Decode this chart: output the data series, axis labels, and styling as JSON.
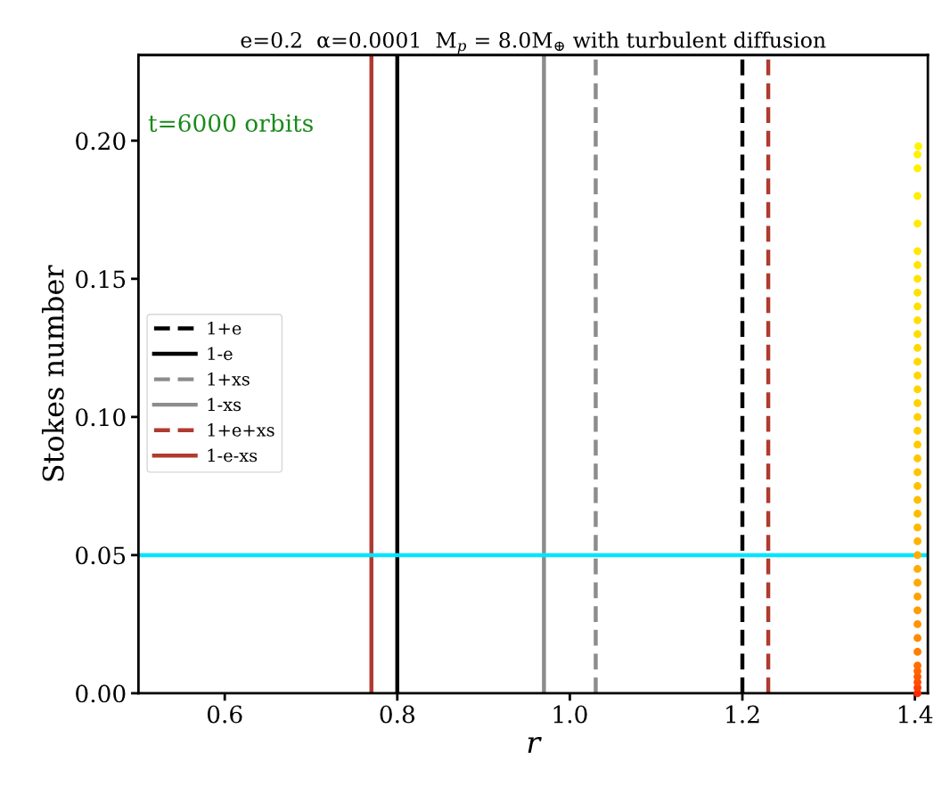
{
  "chart_data": {
    "type": "scatter",
    "title": "e=0.2  α=0.0001  M$_{p}$ = 8.0M$_{⊕}$ with turbulent diffusion",
    "xlabel": "r",
    "ylabel": "Stokes number",
    "annotations": [
      "t=6000 orbits"
    ],
    "xlim": [
      0.5,
      1.415
    ],
    "xticks": [
      0.6,
      0.8,
      {
        "value": 1.0,
        "label": "1.0"
      },
      1.2,
      1.4
    ],
    "ylim": [
      0,
      0.231
    ],
    "yticks": [
      {
        "value": 0,
        "label": "0.00"
      },
      0.05,
      {
        "value": 0.1,
        "label": "0.10"
      },
      0.15,
      {
        "value": 0.2,
        "label": "0.20"
      }
    ],
    "series": [
      {
        "name": "1+e",
        "type": "line",
        "color": "#000000",
        "line_style": "dashed",
        "x": [
          1.2,
          1.2
        ],
        "values": [
          0,
          0.231
        ]
      },
      {
        "name": "1-e",
        "type": "line",
        "color": "#000000",
        "line_style": "solid",
        "x": [
          0.8,
          0.8
        ],
        "values": [
          0,
          0.231
        ]
      },
      {
        "name": "1+xs",
        "type": "line",
        "color": "#8c8c8c",
        "line_style": "dashed",
        "x": [
          1.03,
          1.03
        ],
        "values": [
          0,
          0.231
        ]
      },
      {
        "name": "1-xs",
        "type": "line",
        "color": "#8c8c8c",
        "line_style": "solid",
        "x": [
          0.97,
          0.97
        ],
        "values": [
          0,
          0.231
        ]
      },
      {
        "name": "1+e+xs",
        "type": "line",
        "color": "#b03a2e",
        "line_style": "dashed",
        "x": [
          1.23,
          1.23
        ],
        "values": [
          0,
          0.231
        ]
      },
      {
        "name": "1-e-xs",
        "type": "line",
        "color": "#b03a2e",
        "line_style": "solid",
        "x": [
          0.77,
          0.77
        ],
        "values": [
          0,
          0.231
        ]
      },
      {
        "marker": "circle",
        "x": [
          1.403,
          1.403,
          1.403,
          1.403,
          1.403,
          1.403,
          1.403,
          1.403,
          1.403,
          1.403,
          1.403,
          1.403,
          1.403,
          1.403,
          1.403,
          1.403,
          1.403,
          1.403,
          1.403,
          1.403,
          1.403,
          1.403,
          1.403,
          1.403,
          1.403,
          1.403,
          1.403,
          1.403,
          1.403,
          1.403,
          1.403,
          1.403,
          1.403,
          1.403,
          1.403,
          1.403,
          1.403,
          1.403,
          1.403,
          1.403,
          1.404
        ],
        "values": [
          0.0,
          0.002,
          0.004,
          0.006,
          0.008,
          0.01,
          0.015,
          0.02,
          0.025,
          0.03,
          0.035,
          0.04,
          0.045,
          0.05,
          0.055,
          0.06,
          0.065,
          0.07,
          0.075,
          0.08,
          0.085,
          0.09,
          0.095,
          0.1,
          0.105,
          0.11,
          0.115,
          0.12,
          0.125,
          0.13,
          0.135,
          0.14,
          0.145,
          0.15,
          0.155,
          0.16,
          0.17,
          0.18,
          0.19,
          0.195,
          0.198
        ],
        "colors": [
          "#ff2a00",
          "#ff3c00",
          "#ff4c00",
          "#ff5a00",
          "#ff6400",
          "#ff6e00",
          "#ff7e00",
          "#ff8a00",
          "#ff9400",
          "#ff9c00",
          "#ffa200",
          "#ffa800",
          "#ffac00",
          "#ffb000",
          "#ffb400",
          "#ffb800",
          "#ffbb00",
          "#ffbe00",
          "#ffc100",
          "#ffc400",
          "#ffc700",
          "#ffca00",
          "#ffcd00",
          "#ffd000",
          "#ffd200",
          "#ffd400",
          "#ffd600",
          "#ffd800",
          "#ffda00",
          "#ffdc00",
          "#ffde00",
          "#ffe000",
          "#ffe200",
          "#ffe400",
          "#ffe600",
          "#ffe800",
          "#ffeb00",
          "#ffee00",
          "#fff000",
          "#fff200",
          "#fff300"
        ]
      }
    ],
    "ref_lines": [
      {
        "axis": "y",
        "value": 0.05,
        "color": "#00e5ff",
        "line_style": "solid"
      }
    ],
    "legend": "left",
    "grid": false
  }
}
